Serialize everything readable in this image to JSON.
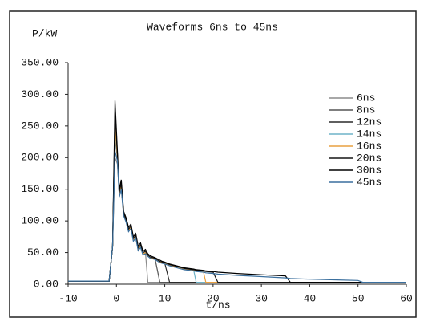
{
  "chart_data": {
    "type": "line",
    "title": "Waveforms 6ns to 45ns",
    "y_label": "P/kW",
    "x_label": "t/ns",
    "x": [
      -10,
      -1.5,
      -0.8,
      -0.3,
      0.2,
      0.6,
      1,
      1.5,
      2,
      2.5,
      3,
      3.5,
      4,
      4.5,
      5,
      5.5,
      6,
      6.5,
      7,
      8,
      9,
      9.5,
      10,
      11,
      12,
      14,
      16,
      16.5,
      18,
      18.5,
      20,
      21,
      25,
      30,
      35,
      36,
      40,
      45,
      50,
      51,
      55,
      60
    ],
    "series": [
      {
        "name": "6ns",
        "color": "#8c8c8c",
        "values": [
          5,
          5,
          60,
          200,
          190,
          140,
          155,
          110,
          100,
          85,
          90,
          70,
          75,
          55,
          60,
          48,
          50,
          3,
          3,
          3,
          3,
          3,
          3,
          3,
          3,
          3,
          3,
          3,
          3,
          3,
          3,
          3,
          3,
          3,
          3,
          3,
          3,
          3,
          3,
          3,
          3,
          3
        ]
      },
      {
        "name": "8ns",
        "color": "#555555",
        "values": [
          5,
          5,
          60,
          230,
          200,
          140,
          155,
          110,
          100,
          85,
          90,
          70,
          75,
          55,
          60,
          48,
          50,
          45,
          42,
          40,
          3,
          3,
          3,
          3,
          3,
          3,
          3,
          3,
          3,
          3,
          3,
          3,
          3,
          3,
          3,
          3,
          3,
          3,
          3,
          3,
          3,
          3
        ]
      },
      {
        "name": "12ns",
        "color": "#2a2a2a",
        "values": [
          5,
          5,
          60,
          260,
          200,
          140,
          155,
          110,
          100,
          85,
          90,
          70,
          75,
          55,
          60,
          48,
          50,
          45,
          42,
          40,
          35,
          34,
          33,
          3,
          3,
          3,
          3,
          3,
          3,
          3,
          3,
          3,
          3,
          3,
          3,
          3,
          3,
          3,
          3,
          3,
          3,
          3
        ]
      },
      {
        "name": "14ns",
        "color": "#6fb3c8",
        "values": [
          5,
          5,
          60,
          240,
          200,
          140,
          155,
          110,
          100,
          85,
          90,
          70,
          75,
          55,
          60,
          48,
          50,
          45,
          42,
          40,
          35,
          34,
          33,
          30,
          28,
          24,
          22,
          3,
          3,
          3,
          3,
          3,
          3,
          3,
          3,
          3,
          3,
          3,
          3,
          3,
          3,
          3
        ]
      },
      {
        "name": "16ns",
        "color": "#e8a040",
        "values": [
          5,
          5,
          60,
          250,
          200,
          140,
          155,
          110,
          100,
          85,
          90,
          70,
          75,
          55,
          60,
          48,
          50,
          45,
          42,
          40,
          35,
          34,
          33,
          30,
          28,
          24,
          22,
          21,
          20,
          3,
          3,
          3,
          3,
          3,
          3,
          3,
          3,
          3,
          3,
          3,
          3,
          3
        ]
      },
      {
        "name": "20ns",
        "color": "#151515",
        "values": [
          5,
          5,
          60,
          270,
          205,
          145,
          160,
          112,
          102,
          87,
          92,
          72,
          77,
          57,
          62,
          50,
          52,
          46,
          43,
          41,
          36,
          35,
          34,
          31,
          29,
          25,
          23,
          22,
          21,
          20,
          19,
          3,
          3,
          3,
          3,
          3,
          3,
          3,
          3,
          3,
          3,
          3
        ]
      },
      {
        "name": "30ns",
        "color": "#000000",
        "values": [
          5,
          5,
          60,
          290,
          210,
          150,
          165,
          115,
          105,
          90,
          95,
          75,
          80,
          60,
          65,
          52,
          55,
          48,
          45,
          42,
          38,
          36,
          35,
          32,
          30,
          26,
          24,
          23,
          22,
          21,
          20,
          19,
          17,
          15,
          13,
          3,
          3,
          3,
          3,
          3,
          3,
          3
        ]
      },
      {
        "name": "45ns",
        "color": "#3a6f9e",
        "values": [
          5,
          5,
          60,
          210,
          195,
          138,
          150,
          108,
          98,
          83,
          88,
          68,
          73,
          53,
          58,
          46,
          48,
          44,
          41,
          39,
          34,
          33,
          32,
          29,
          27,
          23,
          21,
          20,
          19,
          18,
          17,
          16,
          14,
          12,
          10,
          9,
          8,
          7,
          6,
          3,
          3,
          3
        ]
      }
    ],
    "xlim": [
      -10,
      60
    ],
    "xticks": [
      -10,
      0,
      10,
      20,
      30,
      40,
      50,
      60
    ],
    "ylim": [
      0,
      350
    ],
    "yticks": [
      {
        "value": 0,
        "label": "0.00"
      },
      {
        "value": 50,
        "label": "50.00"
      },
      {
        "value": 100,
        "label": "100.00"
      },
      {
        "value": 150,
        "label": "150.00"
      },
      {
        "value": 200,
        "label": "200.00"
      },
      {
        "value": 250,
        "label": "250.00"
      },
      {
        "value": 300,
        "label": "300.00"
      },
      {
        "value": 350,
        "label": "350.00"
      }
    ],
    "grid": false,
    "legend": "right"
  }
}
